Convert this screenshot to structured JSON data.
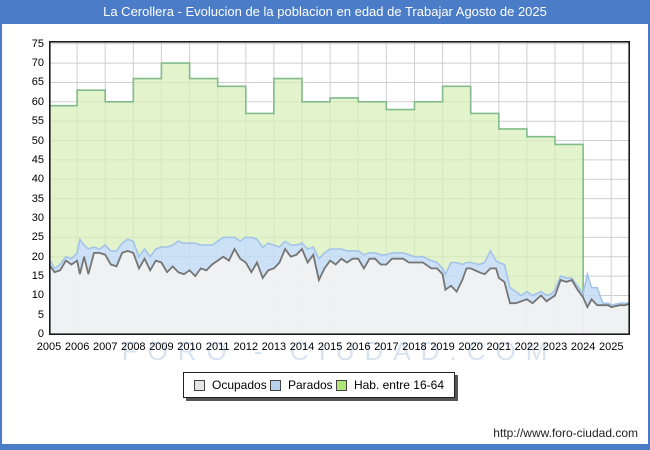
{
  "title": "La Cerollera - Evolucion de la poblacion en edad de Trabajar Agosto de 2025",
  "watermark": "FORO - CIUDAD.COM",
  "footer_url": "http://www.foro-ciudad.com",
  "colors": {
    "frame_blue": "#4a7cc8",
    "title_text": "#ffffff",
    "grid": "#cfcfcf",
    "plot_border": "#1a1a1a",
    "watermark": "#d9e2f1",
    "ocupados_fill": "#f2f2f2",
    "ocupados_stroke": "#757575",
    "parados_fill": "#c3dcf4",
    "parados_stroke": "#a3c4e8",
    "hab_fill": "#d8efb8",
    "hab_stroke": "#82bb8c"
  },
  "chart_data": {
    "type": "area",
    "title": "La Cerollera - Evolucion de la poblacion en edad de Trabajar Agosto de 2025",
    "xlabel": "",
    "ylabel": "",
    "ylim": [
      0,
      75
    ],
    "y_tick_step": 5,
    "y_ticks": [
      0,
      5,
      10,
      15,
      20,
      25,
      30,
      35,
      40,
      45,
      50,
      55,
      60,
      65,
      70,
      75
    ],
    "x_ticks": [
      "2005",
      "2006",
      "2007",
      "2008",
      "2009",
      "2010",
      "2011",
      "2012",
      "2013",
      "2014",
      "2015",
      "2016",
      "2017",
      "2018",
      "2019",
      "2020",
      "2021",
      "2022",
      "2023",
      "2024",
      "2025"
    ],
    "x_range": [
      2005,
      2025.667
    ],
    "grid": true,
    "legend_position": "bottom",
    "stacking_note": "Parados values are counts stacked on top of Ocupados; Hab. entre 16-64 is annual stepped data ending Jan 2024",
    "x": [
      2005.0,
      2005.2,
      2005.4,
      2005.6,
      2005.8,
      2006.0,
      2006.1,
      2006.25,
      2006.4,
      2006.6,
      2006.8,
      2007.0,
      2007.2,
      2007.4,
      2007.6,
      2007.8,
      2008.0,
      2008.2,
      2008.4,
      2008.6,
      2008.8,
      2009.0,
      2009.2,
      2009.4,
      2009.6,
      2009.8,
      2010.0,
      2010.2,
      2010.4,
      2010.6,
      2010.8,
      2011.0,
      2011.2,
      2011.4,
      2011.6,
      2011.8,
      2012.0,
      2012.2,
      2012.4,
      2012.6,
      2012.8,
      2013.0,
      2013.2,
      2013.4,
      2013.6,
      2013.8,
      2014.0,
      2014.2,
      2014.4,
      2014.6,
      2014.8,
      2015.0,
      2015.2,
      2015.4,
      2015.6,
      2015.8,
      2016.0,
      2016.2,
      2016.4,
      2016.6,
      2016.8,
      2017.0,
      2017.2,
      2017.4,
      2017.6,
      2017.8,
      2018.0,
      2018.3,
      2018.6,
      2018.8,
      2019.0,
      2019.1,
      2019.3,
      2019.5,
      2019.7,
      2019.85,
      2020.0,
      2020.3,
      2020.5,
      2020.7,
      2020.9,
      2021.0,
      2021.2,
      2021.4,
      2021.6,
      2021.8,
      2022.0,
      2022.2,
      2022.5,
      2022.7,
      2022.9,
      2023.0,
      2023.2,
      2023.4,
      2023.6,
      2023.8,
      2024.0,
      2024.15,
      2024.3,
      2024.5,
      2024.7,
      2024.9,
      2025.0,
      2025.3,
      2025.5,
      2025.67
    ],
    "series": [
      {
        "name": "Ocupados",
        "legend_fill": "#e4e4e4",
        "values": [
          18,
          16,
          16.5,
          19,
          18,
          19,
          15.5,
          20,
          15.5,
          21,
          21,
          20.5,
          18,
          17.5,
          21,
          21.5,
          21,
          17,
          19.5,
          16.5,
          19,
          18.5,
          16,
          17.5,
          16,
          15.5,
          16.5,
          15,
          17,
          16.5,
          18,
          19,
          20,
          19,
          22,
          19.5,
          18.5,
          16,
          18.5,
          14.5,
          16.5,
          17,
          18.5,
          22,
          20,
          20.5,
          22,
          18.5,
          20.5,
          14,
          17,
          19,
          18,
          19.5,
          18.5,
          19.5,
          19.5,
          17,
          19.5,
          19.5,
          18,
          18,
          19.5,
          19.5,
          19.5,
          18.5,
          18.5,
          18.5,
          17,
          17,
          15.5,
          11.5,
          12.5,
          11,
          14,
          17,
          17,
          16,
          15.5,
          17,
          17,
          14.5,
          13.5,
          8,
          8,
          8.5,
          9,
          8,
          10,
          8.5,
          9.5,
          10,
          14,
          13.5,
          14,
          11.5,
          9.5,
          7,
          9,
          7.5,
          7.5,
          7.5,
          7,
          7.5,
          7.5,
          8
        ]
      },
      {
        "name": "Parados",
        "legend_fill": "#b4d0ec",
        "values": [
          1.5,
          1,
          1.5,
          1,
          1.5,
          2,
          9,
          3,
          6.5,
          1.5,
          1,
          2.5,
          3.5,
          4,
          2.5,
          3,
          3,
          3,
          2.5,
          3.5,
          3,
          4,
          6.5,
          5.5,
          8,
          8,
          7,
          8.5,
          6,
          6.5,
          5,
          5,
          5,
          6,
          3,
          4.5,
          6.5,
          9,
          6,
          8,
          7,
          6,
          4,
          2,
          3,
          2.5,
          1.5,
          3.5,
          2,
          5.5,
          4,
          3,
          4,
          2.5,
          3,
          2,
          2,
          3.5,
          1.5,
          1.5,
          2.5,
          2.5,
          1.5,
          1.5,
          1.5,
          2,
          1.5,
          1.5,
          2,
          1.5,
          1.5,
          4,
          6,
          7.5,
          4,
          1.5,
          1.5,
          2,
          3,
          4.5,
          2,
          4,
          4.5,
          4,
          3,
          1.5,
          2,
          2,
          1,
          1.5,
          1,
          1.5,
          1,
          1,
          0.5,
          1,
          1,
          8.5,
          3,
          4.5,
          0.5,
          0.5,
          0.5,
          0.5,
          0.5,
          0
        ]
      },
      {
        "name": "Hab. entre 16-64",
        "legend_fill": "#ade578",
        "annual_steps": [
          [
            2005,
            59
          ],
          [
            2006,
            63
          ],
          [
            2007,
            60
          ],
          [
            2008,
            66
          ],
          [
            2009,
            70
          ],
          [
            2010,
            66
          ],
          [
            2011,
            64
          ],
          [
            2012,
            57
          ],
          [
            2013,
            66
          ],
          [
            2014,
            60
          ],
          [
            2015,
            61
          ],
          [
            2016,
            60
          ],
          [
            2017,
            58
          ],
          [
            2018,
            60
          ],
          [
            2019,
            64
          ],
          [
            2020,
            57
          ],
          [
            2021,
            53
          ],
          [
            2022,
            51
          ],
          [
            2023,
            49
          ]
        ],
        "series_end": 2024.0
      }
    ]
  }
}
